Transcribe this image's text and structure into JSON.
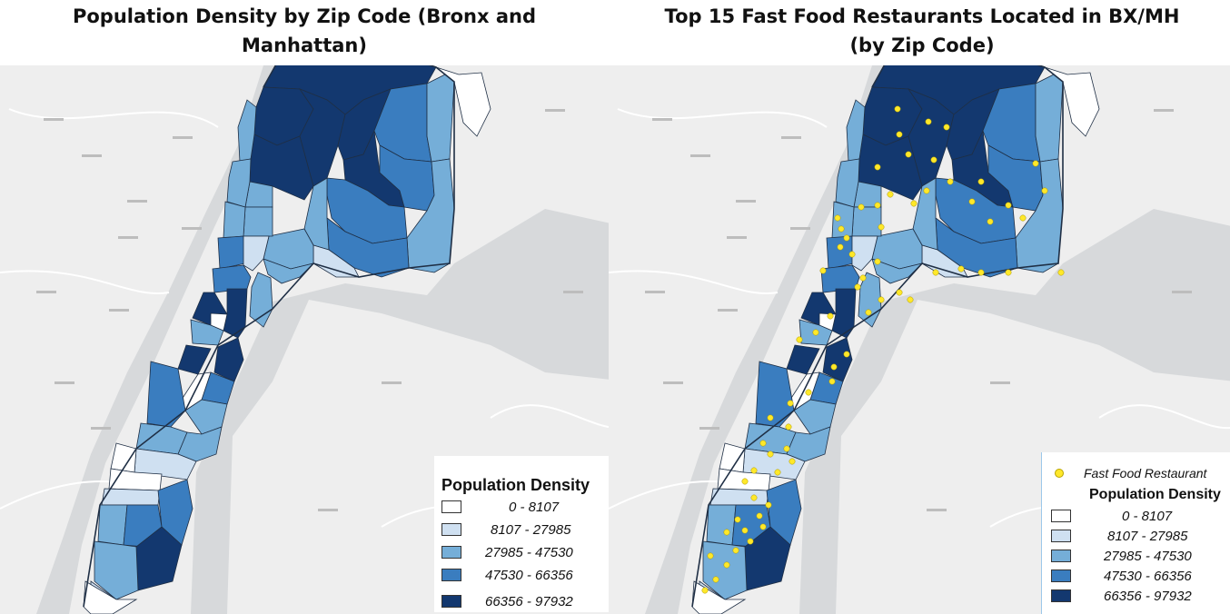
{
  "titles": {
    "left": [
      "Population Density by Zip Code (Bronx and",
      "Manhattan)"
    ],
    "right": [
      "Top 15 Fast Food Restaurants Located in BX/MH",
      "(by Zip Code)"
    ]
  },
  "legend": {
    "title": "Population Density",
    "marker_label": "Fast Food Restaurant",
    "marker_color": "#ffe82a",
    "classes": [
      {
        "label": "0 - 8107",
        "color": "#ffffff"
      },
      {
        "label": "8107 - 27985",
        "color": "#cfe0f1"
      },
      {
        "label": "27985 - 47530",
        "color": "#75aed8"
      },
      {
        "label": "47530 - 66356",
        "color": "#3a7dbf"
      },
      {
        "label": "66356 - 97932",
        "color": "#13386f"
      }
    ]
  },
  "colors": {
    "basemap": "#eeeeee",
    "water": "#d7d9db",
    "roads": "#ffffff",
    "outline": "#1f2f45"
  }
}
